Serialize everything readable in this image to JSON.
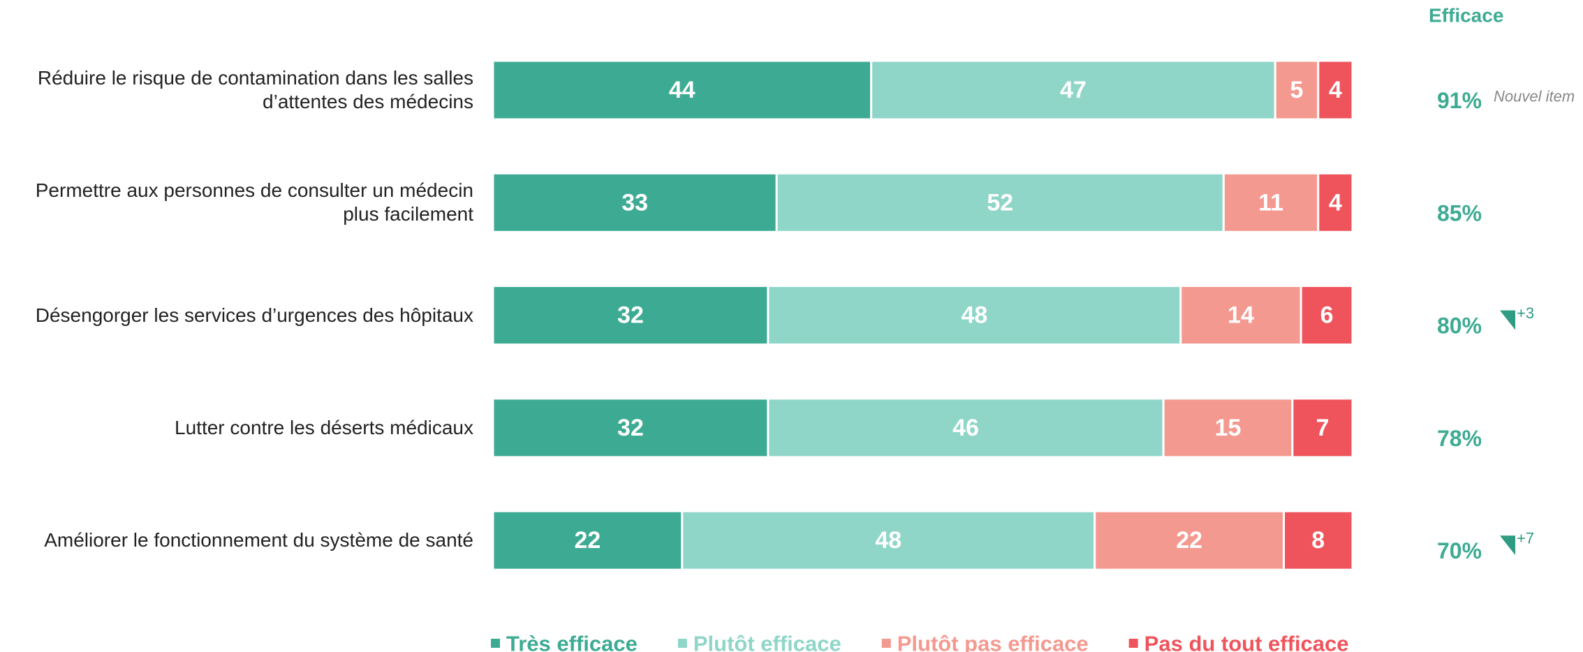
{
  "chart_data": {
    "type": "bar",
    "orientation": "horizontal",
    "stacked": true,
    "categories": [
      "Réduire le risque de contamination dans les salles\nd’attentes des médecins",
      "Permettre aux personnes de consulter un médecin\nplus facilement",
      "Désengorger les services d’urgences des hôpitaux",
      "Lutter contre les déserts médicaux",
      "Améliorer le fonctionnement du système de santé"
    ],
    "series": [
      {
        "name": "Très efficace",
        "color": "#3dab93",
        "values": [
          44,
          33,
          32,
          32,
          22
        ]
      },
      {
        "name": "Plutôt efficace",
        "color": "#8fd6c8",
        "values": [
          47,
          52,
          48,
          46,
          48
        ]
      },
      {
        "name": "Plutôt pas efficace",
        "color": "#f4998f",
        "values": [
          5,
          11,
          14,
          15,
          22
        ]
      },
      {
        "name": "Pas du tout efficace",
        "color": "#ef545c",
        "values": [
          4,
          4,
          6,
          7,
          8
        ]
      }
    ],
    "xlim": [
      0,
      100
    ],
    "legend": "bottom",
    "efficace": {
      "title": "Efficace",
      "color": "#3dab93",
      "values": [
        91,
        85,
        80,
        78,
        70
      ],
      "value_labels": [
        "91%",
        "85%",
        "80%",
        "78%",
        "70%"
      ]
    },
    "annotations": [
      {
        "text": "Nouvel item"
      },
      null,
      {
        "text": "+3",
        "arrow": true
      },
      null,
      {
        "text": "+7",
        "arrow": true
      }
    ]
  }
}
